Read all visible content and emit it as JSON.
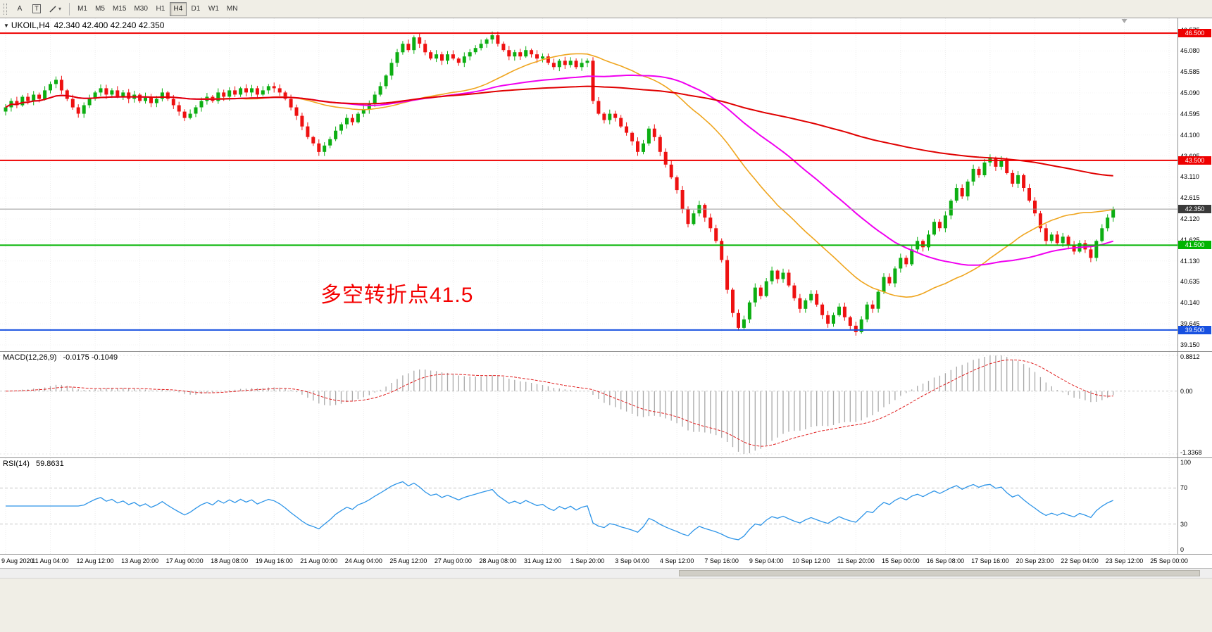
{
  "toolbar": {
    "tool_a": "A",
    "tool_t": "T",
    "timeframes": [
      "M1",
      "M5",
      "M15",
      "M30",
      "H1",
      "H4",
      "D1",
      "W1",
      "MN"
    ],
    "active_timeframe": "H4"
  },
  "panels": {
    "main": {
      "title_arrow": "▼",
      "symbol": "UKOIL,H4",
      "ohlc": "42.340 42.400 42.240 42.350",
      "annotation": "多空转折点41.5"
    },
    "macd": {
      "label": "MACD(12,26,9)",
      "values": "-0.0175 -0.1049"
    },
    "rsi": {
      "label": "RSI(14)",
      "value": "59.8631"
    }
  },
  "chart_data": [
    {
      "type": "candlestick",
      "symbol": "UKOIL",
      "timeframe": "H4",
      "ohlc": {
        "open": 42.34,
        "high": 42.4,
        "low": 42.24,
        "close": 42.35
      },
      "ylim": [
        39.0,
        46.85
      ],
      "y_ticks": [
        46.575,
        46.08,
        45.585,
        45.09,
        44.595,
        44.1,
        43.605,
        43.11,
        42.615,
        42.12,
        41.625,
        41.13,
        40.635,
        40.14,
        39.645,
        39.15
      ],
      "levels": [
        {
          "value": 46.5,
          "label": "46.500",
          "color": "#ee0000"
        },
        {
          "value": 43.5,
          "label": "43.500",
          "color": "#ee0000"
        },
        {
          "value": 41.5,
          "label": "41.500",
          "color": "#00b400"
        },
        {
          "value": 39.5,
          "label": "39.500",
          "color": "#1750e0"
        }
      ],
      "current_price": {
        "value": 42.35,
        "label": "42.350",
        "line_color": "#9a9a9a",
        "label_bg": "#3a3a3a"
      },
      "annotation": {
        "text": "多空转折点41.5",
        "color": "#f40000"
      },
      "colors": {
        "up": "#0cae12",
        "down": "#ee1111"
      },
      "moving_averages": [
        {
          "name": "fast-ma",
          "period": 34,
          "color": "#efa51e",
          "width": 1.6
        },
        {
          "name": "mid-ma",
          "period": 55,
          "color": "#f000f0",
          "width": 2
        },
        {
          "name": "slow-ma",
          "period": 144,
          "color": "#e00000",
          "width": 2
        }
      ],
      "bars_per_label": 8,
      "total_slots": 210,
      "x_labels": [
        "9 Aug 2020",
        "11 Aug 04:00",
        "12 Aug 12:00",
        "13 Aug 20:00",
        "17 Aug 00:00",
        "18 Aug 08:00",
        "19 Aug 16:00",
        "21 Aug 00:00",
        "24 Aug 04:00",
        "25 Aug 12:00",
        "27 Aug 00:00",
        "28 Aug 08:00",
        "31 Aug 12:00",
        "1 Sep 20:00",
        "3 Sep 04:00",
        "4 Sep 12:00",
        "7 Sep 16:00",
        "9 Sep 04:00",
        "10 Sep 12:00",
        "11 Sep 20:00",
        "15 Sep 00:00",
        "16 Sep 08:00",
        "17 Sep 16:00",
        "20 Sep 23:00",
        "22 Sep 04:00",
        "23 Sep 12:00",
        "25 Sep 00:00"
      ],
      "first_open": 44.65,
      "closes": [
        44.75,
        44.9,
        44.8,
        45.0,
        44.9,
        45.05,
        44.95,
        45.15,
        45.3,
        45.4,
        45.15,
        44.95,
        44.75,
        44.6,
        44.8,
        44.95,
        45.1,
        45.2,
        45.05,
        45.15,
        45.0,
        45.1,
        44.95,
        45.05,
        44.9,
        45.0,
        44.85,
        44.95,
        45.1,
        44.95,
        44.8,
        44.65,
        44.5,
        44.6,
        44.75,
        44.9,
        45.0,
        44.9,
        45.1,
        45.0,
        45.15,
        45.05,
        45.2,
        45.1,
        45.2,
        45.05,
        45.15,
        45.25,
        45.2,
        45.1,
        44.95,
        44.75,
        44.55,
        44.3,
        44.05,
        43.9,
        43.7,
        43.85,
        44.0,
        44.2,
        44.35,
        44.5,
        44.4,
        44.6,
        44.7,
        44.85,
        45.05,
        45.25,
        45.5,
        45.8,
        46.05,
        46.25,
        46.1,
        46.4,
        46.25,
        46.05,
        45.9,
        46.0,
        45.85,
        46.0,
        45.9,
        45.8,
        45.95,
        46.05,
        46.15,
        46.25,
        46.35,
        46.45,
        46.25,
        46.1,
        45.95,
        46.05,
        45.95,
        46.1,
        46.0,
        45.9,
        45.95,
        45.8,
        45.7,
        45.85,
        45.75,
        45.85,
        45.7,
        45.8,
        45.85,
        44.9,
        44.6,
        44.45,
        44.6,
        44.5,
        44.3,
        44.15,
        43.95,
        43.7,
        43.9,
        44.25,
        44.05,
        43.7,
        43.4,
        43.1,
        42.8,
        42.35,
        42.0,
        42.25,
        42.45,
        42.15,
        41.9,
        41.6,
        41.15,
        40.45,
        39.9,
        39.55,
        39.75,
        40.15,
        40.5,
        40.3,
        40.65,
        40.9,
        40.7,
        40.85,
        40.55,
        40.25,
        40.0,
        40.2,
        40.35,
        40.1,
        39.85,
        39.65,
        39.85,
        40.05,
        39.8,
        39.6,
        39.45,
        39.75,
        40.1,
        40.0,
        40.4,
        40.75,
        40.6,
        40.95,
        41.2,
        41.05,
        41.4,
        41.6,
        41.45,
        41.75,
        42.05,
        41.9,
        42.2,
        42.55,
        42.85,
        42.65,
        43.0,
        43.3,
        43.15,
        43.45,
        43.55,
        43.35,
        43.5,
        43.2,
        42.95,
        43.15,
        42.85,
        42.55,
        42.25,
        41.9,
        41.6,
        41.75,
        41.55,
        41.7,
        41.5,
        41.35,
        41.55,
        41.4,
        41.2,
        41.6,
        41.9,
        42.15,
        42.35
      ]
    },
    {
      "type": "macd",
      "label": "MACD(12,26,9)",
      "params": [
        12,
        26,
        9
      ],
      "current_values": [
        -0.0175,
        -0.1049
      ],
      "scale_labels": {
        "top": "0.8812",
        "zero": "0.00",
        "bottom": "-1.3368"
      },
      "scale_values": {
        "max": 0.8812,
        "zero": 0.0,
        "min": -1.3368
      },
      "colors": {
        "histogram": "#a9a9a9",
        "signal": "#e02020"
      }
    },
    {
      "type": "rsi",
      "label": "RSI(14)",
      "period": 14,
      "current_value": 59.8631,
      "range": [
        0,
        100
      ],
      "guide_levels": [
        70,
        30
      ],
      "axis_labels": [
        "100",
        "70",
        "30",
        "0"
      ],
      "color": "#2e95e8"
    }
  ]
}
